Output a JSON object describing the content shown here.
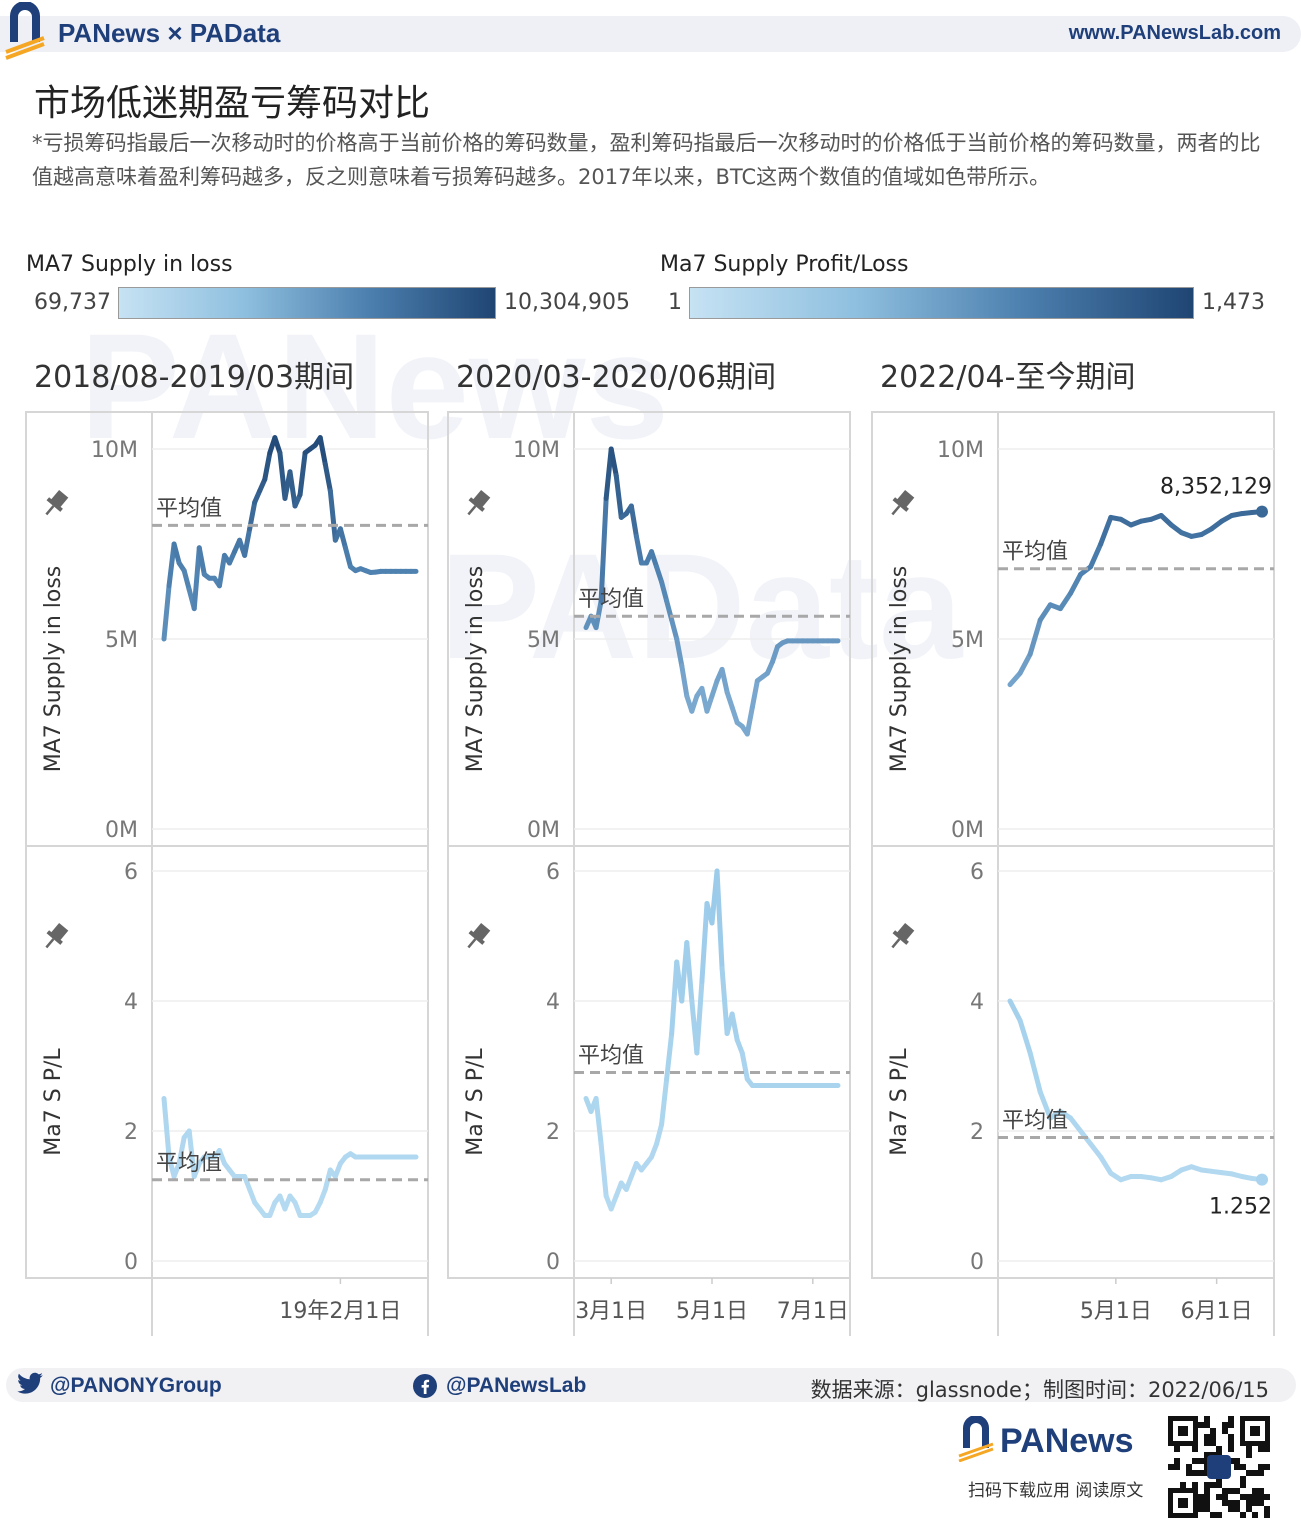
{
  "header": {
    "brand": "PANews × PAData",
    "site": "www.PANewsLab.com"
  },
  "title": "市场低迷期盈亏筹码对比",
  "note": "*亏损筹码指最后一次移动时的价格高于当前价格的筹码数量，盈利筹码指最后一次移动时的价格低于当前价格的筹码数量，两者的比值越高意味着盈利筹码越多，反之则意味着亏损筹码越多。2017年以来，BTC这两个数值的值域如色带所示。",
  "legends": [
    {
      "label": "MA7 Supply in loss",
      "min": "69,737",
      "max": "10,304,905"
    },
    {
      "label": "Ma7 Supply Profit/Loss",
      "min": "1",
      "max": "1,473"
    }
  ],
  "colors": {
    "dark": "#1f4573",
    "mid": "#4c7fae",
    "light": "#a9d3ee",
    "avg": "#a8a8a8"
  },
  "chart_data": [
    {
      "type": "line",
      "panel_title": "2018/08-2019/03期间",
      "avg_label": "平均值",
      "top": {
        "ylabel": "MA7 Supply in loss",
        "ylim": [
          0,
          10500000
        ],
        "yticks": [
          "10M",
          "5M",
          "0M"
        ],
        "ytick_values": [
          10000000,
          5000000,
          0
        ],
        "avg": 7990000,
        "x": [
          0,
          2,
          4,
          6,
          8,
          10,
          12,
          14,
          16,
          18,
          20,
          22,
          24,
          26,
          28,
          30,
          32,
          34,
          36,
          38,
          40,
          42,
          44,
          46,
          48,
          50,
          52,
          54,
          56,
          58,
          60,
          62,
          64,
          66,
          68,
          70,
          72,
          74,
          76,
          78,
          80,
          82,
          84,
          86,
          88,
          90,
          92,
          94,
          96,
          98,
          100
        ],
        "values": [
          5000000,
          6400000,
          7500000,
          7000000,
          6800000,
          6300000,
          5800000,
          7400000,
          6700000,
          6600000,
          6600000,
          6400000,
          7200000,
          7000000,
          7300000,
          7600000,
          7200000,
          7900000,
          8600000,
          8900000,
          9200000,
          9900000,
          10300000,
          9900000,
          8700000,
          9400000,
          8500000,
          8800000,
          9900000,
          10000000,
          10100000,
          10300000,
          9600000,
          8900000,
          7600000,
          7900000,
          7400000,
          6900000,
          6800000,
          6850000,
          6800000,
          6750000,
          6760000,
          6780000,
          6780000,
          6780000,
          6780000,
          6780000,
          6780000,
          6780000,
          6780000
        ]
      },
      "bottom": {
        "ylabel": "Ma7 S P/L",
        "ylim": [
          0,
          6.2
        ],
        "yticks": [
          "6",
          "4",
          "2",
          "0"
        ],
        "ytick_values": [
          6,
          4,
          2,
          0
        ],
        "avg": 1.25,
        "x": [
          0,
          2,
          4,
          6,
          8,
          10,
          12,
          14,
          16,
          18,
          20,
          22,
          24,
          26,
          28,
          30,
          32,
          34,
          36,
          38,
          40,
          42,
          44,
          46,
          48,
          50,
          52,
          54,
          56,
          58,
          60,
          62,
          64,
          66,
          68,
          70,
          72,
          74,
          76,
          78,
          80,
          82,
          84,
          86,
          88,
          90,
          92,
          94,
          96,
          98,
          100
        ],
        "values": [
          2.5,
          1.6,
          1.3,
          1.5,
          1.9,
          2.0,
          1.3,
          1.5,
          1.6,
          1.6,
          1.6,
          1.7,
          1.5,
          1.4,
          1.3,
          1.3,
          1.3,
          1.1,
          0.9,
          0.8,
          0.7,
          0.7,
          0.9,
          1.0,
          0.8,
          1.0,
          0.9,
          0.7,
          0.7,
          0.7,
          0.75,
          0.9,
          1.1,
          1.4,
          1.3,
          1.5,
          1.6,
          1.65,
          1.6,
          1.6,
          1.6,
          1.6,
          1.6,
          1.6,
          1.6,
          1.6,
          1.6,
          1.6,
          1.6,
          1.6,
          1.6
        ]
      },
      "xticks": [
        "19年2月1日"
      ],
      "xtick_positions": [
        70
      ]
    },
    {
      "type": "line",
      "panel_title": "2020/03-2020/06期间",
      "avg_label": "平均值",
      "top": {
        "ylabel": "MA7 Supply in loss",
        "ylim": [
          0,
          10500000
        ],
        "yticks": [
          "10M",
          "5M",
          "0M"
        ],
        "ytick_values": [
          10000000,
          5000000,
          0
        ],
        "avg": 5600000,
        "x": [
          0,
          2,
          4,
          6,
          8,
          10,
          12,
          14,
          16,
          18,
          20,
          22,
          24,
          26,
          28,
          30,
          32,
          34,
          36,
          38,
          40,
          42,
          44,
          46,
          48,
          50,
          52,
          54,
          56,
          58,
          60,
          62,
          64,
          66,
          68,
          70,
          72,
          74,
          76,
          78,
          80,
          82,
          84,
          86,
          88,
          90,
          92,
          94,
          96,
          98,
          100
        ],
        "values": [
          5300000,
          5600000,
          5300000,
          6000000,
          8700000,
          10000000,
          9300000,
          8200000,
          8300000,
          8500000,
          7700000,
          7000000,
          7000000,
          7300000,
          6900000,
          6500000,
          6000000,
          5500000,
          5000000,
          4300000,
          3500000,
          3100000,
          3500000,
          3700000,
          3100000,
          3500000,
          3900000,
          4200000,
          3600000,
          3200000,
          2800000,
          2700000,
          2500000,
          3200000,
          3900000,
          4000000,
          4100000,
          4400000,
          4800000,
          4900000,
          4950000,
          4950000,
          4950000,
          4950000,
          4950000,
          4950000,
          4950000,
          4950000,
          4950000,
          4950000,
          4950000
        ]
      },
      "bottom": {
        "ylabel": "Ma7 S P/L",
        "ylim": [
          0,
          6.2
        ],
        "yticks": [
          "6",
          "4",
          "2",
          "0"
        ],
        "ytick_values": [
          6,
          4,
          2,
          0
        ],
        "avg": 2.9,
        "x": [
          0,
          2,
          4,
          6,
          8,
          10,
          12,
          14,
          16,
          18,
          20,
          22,
          24,
          26,
          28,
          30,
          32,
          34,
          36,
          38,
          40,
          42,
          44,
          46,
          48,
          50,
          52,
          54,
          56,
          58,
          60,
          62,
          64,
          66,
          68,
          70,
          72,
          74,
          76,
          78,
          80,
          82,
          84,
          86,
          88,
          90,
          92,
          94,
          96,
          98,
          100
        ],
        "values": [
          2.5,
          2.3,
          2.5,
          1.8,
          1.0,
          0.8,
          1.0,
          1.2,
          1.1,
          1.3,
          1.5,
          1.4,
          1.5,
          1.6,
          1.8,
          2.1,
          2.8,
          3.5,
          4.6,
          4.0,
          4.9,
          4.0,
          3.2,
          4.3,
          5.5,
          5.2,
          6.0,
          4.5,
          3.5,
          3.8,
          3.4,
          3.2,
          2.8,
          2.7,
          2.7,
          2.7,
          2.7,
          2.7,
          2.7,
          2.7,
          2.7,
          2.7,
          2.7,
          2.7,
          2.7,
          2.7,
          2.7,
          2.7,
          2.7,
          2.7,
          2.7
        ]
      },
      "xticks": [
        "3月1日",
        "5月1日",
        "7月1日"
      ],
      "xtick_positions": [
        10,
        50,
        90
      ]
    },
    {
      "type": "line",
      "panel_title": "2022/04-至今期间",
      "avg_label": "平均值",
      "top": {
        "ylabel": "MA7 Supply in loss",
        "ylim": [
          0,
          10500000
        ],
        "yticks": [
          "10M",
          "5M",
          "0M"
        ],
        "ytick_values": [
          10000000,
          5000000,
          0
        ],
        "avg": 6850000,
        "x": [
          0,
          4,
          8,
          12,
          16,
          20,
          24,
          28,
          32,
          36,
          40,
          44,
          48,
          52,
          56,
          60,
          64,
          68,
          72,
          76,
          80,
          84,
          88,
          92,
          96,
          100
        ],
        "values": [
          3800000,
          4100000,
          4600000,
          5500000,
          5900000,
          5800000,
          6200000,
          6700000,
          6900000,
          7500000,
          8200000,
          8150000,
          8000000,
          8100000,
          8150000,
          8250000,
          8000000,
          7800000,
          7700000,
          7750000,
          7900000,
          8100000,
          8250000,
          8300000,
          8330000,
          8352129
        ],
        "last_label": "8,352,129"
      },
      "bottom": {
        "ylabel": "Ma7 S P/L",
        "ylim": [
          0,
          6.2
        ],
        "yticks": [
          "6",
          "4",
          "2",
          "0"
        ],
        "ytick_values": [
          6,
          4,
          2,
          0
        ],
        "avg": 1.9,
        "x": [
          0,
          4,
          8,
          12,
          16,
          20,
          24,
          28,
          32,
          36,
          40,
          44,
          48,
          52,
          56,
          60,
          64,
          68,
          72,
          76,
          80,
          84,
          88,
          92,
          96,
          100
        ],
        "values": [
          4.0,
          3.7,
          3.2,
          2.6,
          2.2,
          2.3,
          2.2,
          2.0,
          1.8,
          1.6,
          1.35,
          1.25,
          1.3,
          1.3,
          1.28,
          1.25,
          1.3,
          1.4,
          1.45,
          1.4,
          1.38,
          1.36,
          1.34,
          1.3,
          1.27,
          1.252
        ],
        "last_label": "1.252"
      },
      "xticks": [
        "5月1日",
        "6月1日"
      ],
      "xtick_positions": [
        42,
        82
      ]
    }
  ],
  "footer": {
    "twitter": "@PANONYGroup",
    "facebook": "@PANewsLab",
    "source": "数据来源：glassnode；制图时间：2022/06/15",
    "brand": "PANews",
    "qr_caption": "扫码下载应用  阅读原文"
  }
}
